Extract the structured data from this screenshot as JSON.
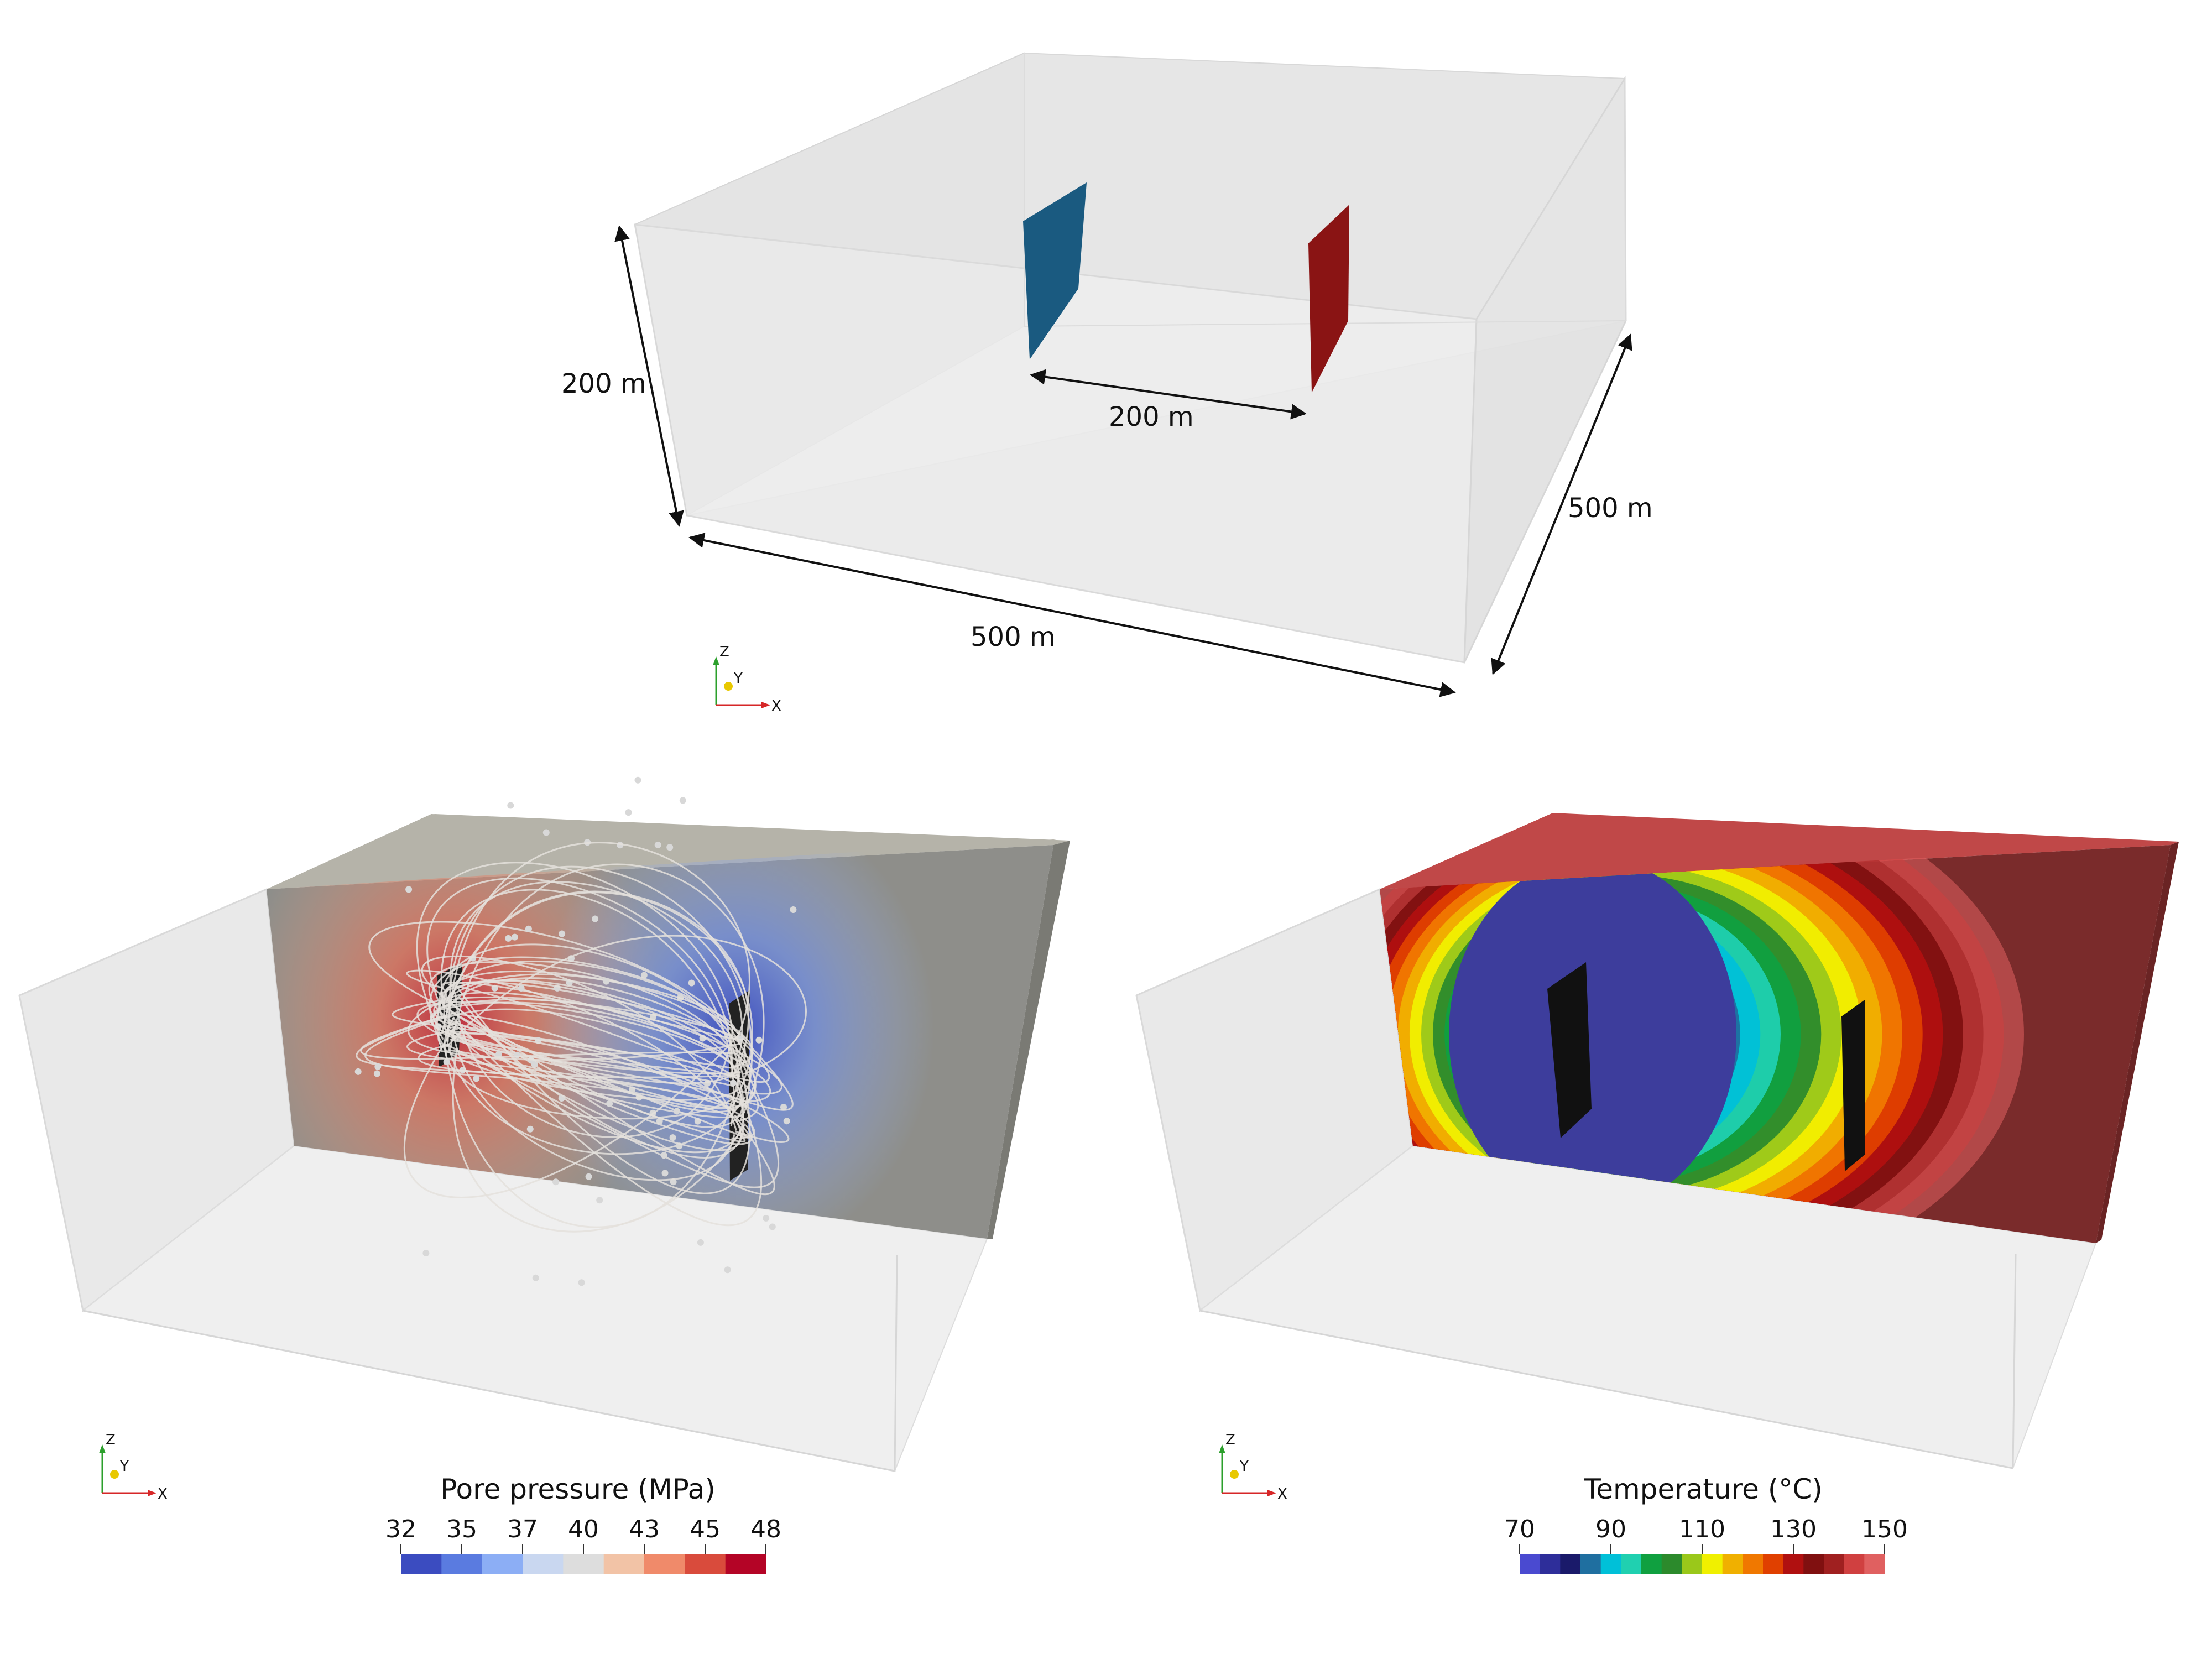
{
  "top_panel": {
    "labels": {
      "height": "200 m",
      "spacing": "200 m",
      "depth": "500 m",
      "length": "500 m"
    }
  },
  "axes_triad": {
    "x": "X",
    "y": "Y",
    "z": "Z"
  },
  "colorbars": {
    "pressure": {
      "title": "Pore pressure (MPa)",
      "ticks": [
        "32",
        "35",
        "37",
        "40",
        "43",
        "45",
        "48"
      ],
      "colors": [
        "#3b4cc0",
        "#5a7be0",
        "#8caef5",
        "#c9d7f0",
        "#dddddd",
        "#f2c3a6",
        "#f08a6a",
        "#d94b3c",
        "#b40426"
      ]
    },
    "temperature": {
      "title": "Temperature (°C)",
      "ticks": [
        "70",
        "90",
        "110",
        "130",
        "150"
      ],
      "colors": [
        "#4a4ad0",
        "#2e2e9a",
        "#1a1a6a",
        "#1f6fa0",
        "#00c0d8",
        "#20d0b0",
        "#10a040",
        "#2c8a2c",
        "#9ac81a",
        "#f0f000",
        "#f0b000",
        "#f07800",
        "#e04000",
        "#b01010",
        "#801010",
        "#a02020",
        "#d04040",
        "#e06060"
      ]
    }
  },
  "colors": {
    "injection_fracture": "#1a5a80",
    "production_fracture": "#8a1414",
    "pressure_block_top": "#b5b3a9",
    "temperature_block_front": "#7a2b2b",
    "temperature_block_top": "#c04848"
  }
}
